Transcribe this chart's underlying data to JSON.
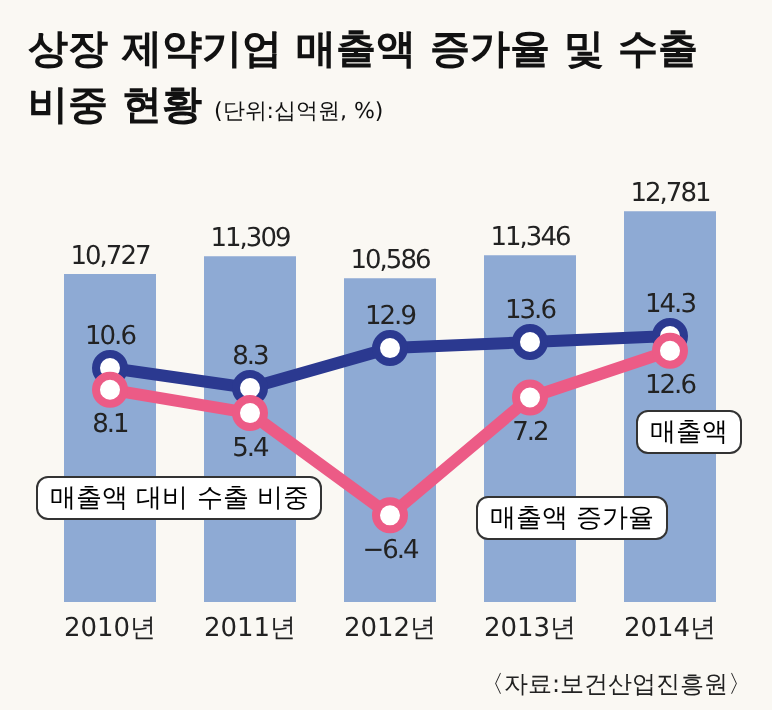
{
  "chart_data": {
    "type": "bar",
    "title": "상장 제약기업 매출액 증가율 및 수출 비중 현황",
    "subtitle": "(단위:십억원, %)",
    "annotations": [
      "〈자료:보건산업진흥원〉"
    ],
    "categories": [
      "2010년",
      "2011년",
      "2012년",
      "2013년",
      "2014년"
    ],
    "series": [
      {
        "name": "매출액",
        "color": "#8eaad4",
        "values": [
          10727,
          11309,
          10586,
          11346,
          12781
        ],
        "value_labels": [
          "10,727",
          "11,309",
          "10,586",
          "11,346",
          "12,781"
        ]
      },
      {
        "name": "매출액 대비 수출 비중",
        "type": "line",
        "axis": "y2",
        "color": "#2b3990",
        "values": [
          10.6,
          8.3,
          12.9,
          13.6,
          14.3
        ]
      },
      {
        "name": "매출액 증가율",
        "type": "line",
        "axis": "y2",
        "color": "#ec5b86",
        "values": [
          8.1,
          5.4,
          -6.4,
          7.2,
          12.6
        ]
      }
    ],
    "data_labels": true,
    "legend": false,
    "grid": false,
    "marker": "circle",
    "line_style": "solid"
  }
}
